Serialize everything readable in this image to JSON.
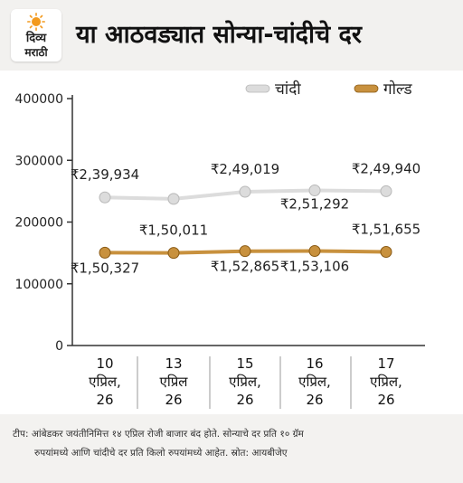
{
  "header": {
    "logo_line1": "दिव्य",
    "logo_line2": "मराठी",
    "title": "या आठवड्यात सोन्या-चांदीचे दर"
  },
  "colors": {
    "silver": "#dcdcdc",
    "gold": "#c8913e",
    "axis": "#333333",
    "grid": "#999999"
  },
  "chart_data": {
    "type": "line",
    "categories": [
      [
        "10",
        "एप्रिल,",
        "26"
      ],
      [
        "13",
        "एप्रिल",
        "26"
      ],
      [
        "15",
        "एप्रिल,",
        "26"
      ],
      [
        "16",
        "एप्रिल,",
        "26"
      ],
      [
        "17",
        "एप्रिल,",
        "26"
      ]
    ],
    "ylim": [
      0,
      400000
    ],
    "yticks": [
      0,
      100000,
      200000,
      300000,
      400000
    ],
    "grid": false,
    "legend_position": "top-right",
    "series": [
      {
        "name": "चांदी",
        "values": [
          239934,
          237500,
          249019,
          251292,
          249940
        ],
        "labels": [
          "₹2,39,934",
          "",
          "₹2,49,019",
          "₹2,51,292",
          "₹2,49,940"
        ]
      },
      {
        "name": "गोल्ड",
        "values": [
          150327,
          150011,
          152865,
          153106,
          151655
        ],
        "labels": [
          "₹1,50,327",
          "₹1,50,011",
          "₹1,52,865",
          "₹1,53,106",
          "₹1,51,655"
        ]
      }
    ]
  },
  "footer": {
    "note_line1": "टीप: आंबेडकर जयंतीनिमित्त १४ एप्रिल रोजी बाजार बंद होते. सोन्याचे दर प्रति १० ग्रॅम",
    "note_line2": "रुपयांमध्ये आणि चांदीचे दर प्रति किलो रुपयांमध्ये आहेत. स्रोत: आयबीजेए"
  }
}
